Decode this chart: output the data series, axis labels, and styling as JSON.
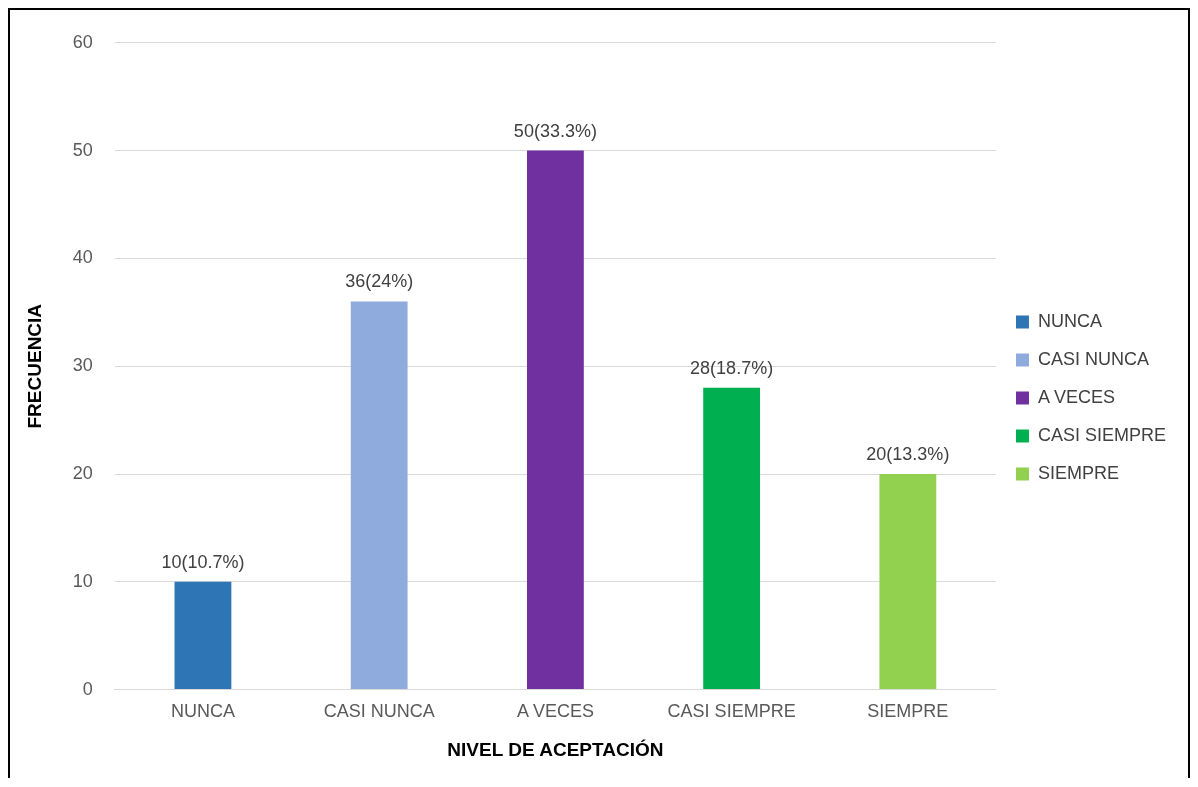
{
  "chart_data": {
    "type": "bar",
    "xlabel": "NIVEL DE ACEPTACIÓN",
    "ylabel": "FRECUENCIA",
    "categories": [
      "NUNCA",
      "CASI NUNCA",
      "A VECES",
      "CASI SIEMPRE",
      "SIEMPRE"
    ],
    "series": [
      {
        "name": "NUNCA",
        "color": "#2e75b6",
        "values": [
          10,
          null,
          null,
          null,
          null
        ],
        "value_labels": [
          "10(10.7%)",
          null,
          null,
          null,
          null
        ]
      },
      {
        "name": "CASI NUNCA",
        "color": "#8faadc",
        "values": [
          null,
          36,
          null,
          null,
          null
        ],
        "value_labels": [
          null,
          "36(24%)",
          null,
          null,
          null
        ]
      },
      {
        "name": "A VECES",
        "color": "#7030a0",
        "values": [
          null,
          null,
          50,
          null,
          null
        ],
        "value_labels": [
          null,
          null,
          "50(33.3%)",
          null,
          null
        ]
      },
      {
        "name": "CASI SIEMPRE",
        "color": "#00b050",
        "values": [
          null,
          null,
          null,
          28,
          null
        ],
        "value_labels": [
          null,
          null,
          null,
          "28(18.7%)",
          null
        ]
      },
      {
        "name": "SIEMPRE",
        "color": "#92d050",
        "values": [
          null,
          null,
          null,
          null,
          20
        ],
        "value_labels": [
          null,
          null,
          null,
          null,
          "20(13.3%)"
        ]
      }
    ],
    "ylim": [
      0,
      60
    ],
    "yticks": [
      0,
      10,
      20,
      30,
      40,
      50,
      60
    ],
    "grid": "y",
    "legend": "right"
  }
}
